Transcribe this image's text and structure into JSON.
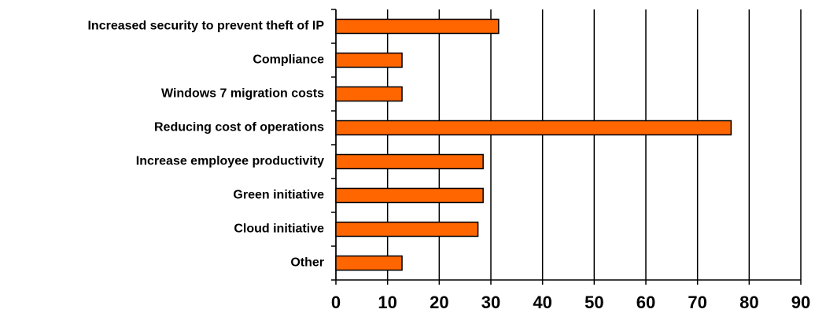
{
  "chart_data": {
    "type": "bar",
    "orientation": "horizontal",
    "categories": [
      "Increased security to prevent theft of IP",
      "Compliance",
      "Windows 7 migration costs",
      "Reducing cost of operations",
      "Increase employee productivity",
      "Green initiative",
      "Cloud initiative",
      "Other"
    ],
    "values": [
      31.5,
      12.8,
      12.8,
      76.5,
      28.5,
      28.5,
      27.5,
      12.8
    ],
    "color": "#ff6600",
    "xlim": [
      0,
      90
    ],
    "xticks": [
      0,
      10,
      20,
      30,
      40,
      50,
      60,
      70,
      80,
      90
    ],
    "grid": true
  }
}
